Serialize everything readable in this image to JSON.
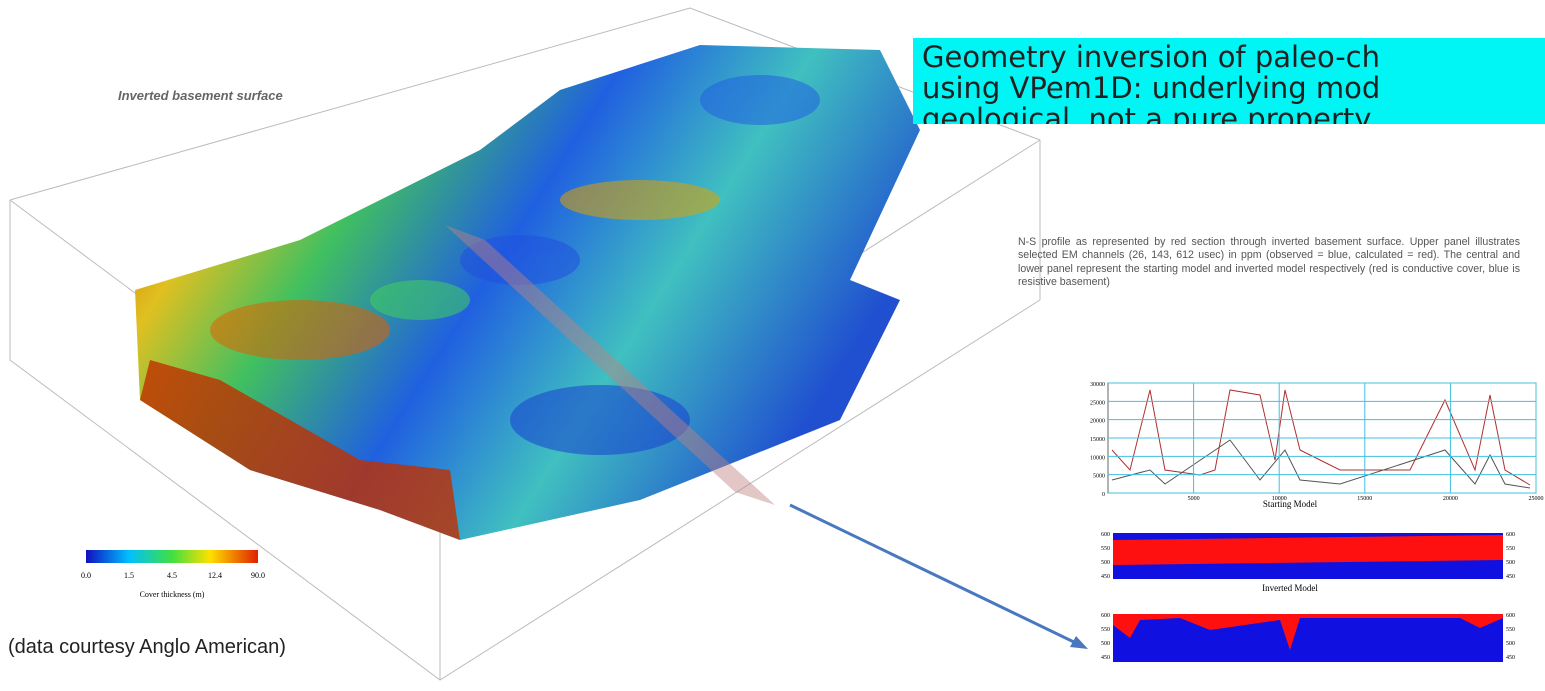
{
  "left": {
    "surface_label": "Inverted basement surface",
    "colorbar": {
      "ticks": [
        "0.0",
        "1.5",
        "4.5",
        "12.4",
        "90.0"
      ],
      "label": "Cover thickness (m)"
    },
    "credit": "(data courtesy Anglo American)"
  },
  "title": {
    "lines": [
      "Geometry inversion of paleo-ch",
      "using VPem1D: underlying mod",
      "geological, not a pure property"
    ]
  },
  "caption": "N-S profile  as represented by red section through inverted basement surface. Upper panel illustrates selected EM channels (26, 143, 612 usec) in ppm (observed = blue, calculated = red). The central and lower panel represent the starting model and inverted model respectively (red is conductive cover, blue is resistive basement)",
  "profile": {
    "yticks": [
      "30000",
      "25000",
      "20000",
      "15000",
      "10000",
      "5000",
      "0"
    ],
    "xticks": [
      "5000",
      "10000",
      "15000",
      "20000",
      "25000"
    ]
  },
  "starting_model": {
    "label": "Starting Model",
    "ticks": [
      "600",
      "550",
      "500",
      "450"
    ]
  },
  "inverted_model": {
    "label": "Inverted Model",
    "ticks": [
      "600",
      "550",
      "500",
      "450"
    ]
  }
}
